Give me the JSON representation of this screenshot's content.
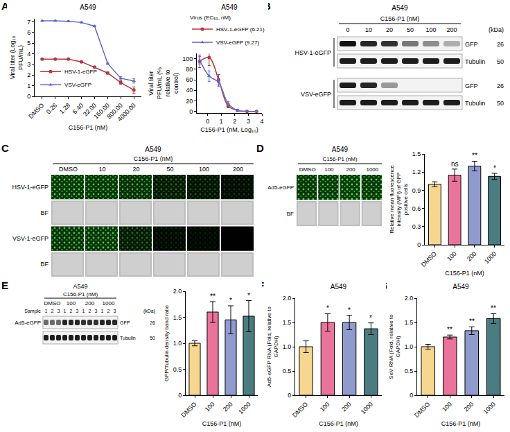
{
  "panel_letters": [
    "A",
    "B",
    "C",
    "D",
    "E",
    "F",
    "G"
  ],
  "chart_data": [
    {
      "type": "line",
      "title": "A549",
      "x_label": "C156-P1 (nM)",
      "y_label": "Viral titer (Log₁₀ PFU/mL)",
      "categories": [
        "DMSO",
        "0.26",
        "1.28",
        "6.40",
        "32.00",
        "160.00",
        "800.00",
        "4000.00"
      ],
      "series": [
        {
          "name": "HSV-1-eGFP",
          "color": "#b8343c",
          "marker": "circle",
          "values": [
            3.5,
            3.5,
            3.5,
            3.25,
            2.75,
            2.2,
            1.3,
            0.6
          ],
          "error": [
            0.05,
            0.05,
            0.05,
            0.05,
            0.05,
            0.1,
            0.15,
            0.3
          ]
        },
        {
          "name": "VSV-eGFP",
          "color": "#6066cc",
          "marker": "triangle-up",
          "values": [
            7.1,
            7.1,
            7.05,
            6.95,
            6.6,
            3.1,
            1.7,
            1.45
          ],
          "error": [
            0.05,
            0.05,
            0.05,
            0.05,
            0.05,
            0.1,
            0.15,
            0.2
          ]
        }
      ],
      "ylim": [
        0,
        7.3
      ],
      "yticks": [
        0,
        1,
        2,
        3,
        4,
        5,
        6,
        7
      ],
      "legend": "bottom left",
      "grid": false
    },
    {
      "type": "line",
      "title": "A549",
      "x_label": "C156-P1 (nM, Log₁₀)",
      "y_label": "Viral titer PFU/mL (% relative to control)",
      "legend_title": "Virus (EC₅₀, nM)",
      "x": [
        -0.59,
        0.11,
        0.81,
        1.51,
        2.2,
        2.9,
        3.6
      ],
      "series": [
        {
          "name": "HSV-1-eGFP (6.21)",
          "color": "#b8343c",
          "marker": "circle",
          "values": [
            95,
            102,
            60,
            10,
            2,
            0,
            0
          ],
          "error": [
            12,
            15,
            10,
            3,
            1,
            0,
            0
          ]
        },
        {
          "name": "VSV-eGFP (9.27)",
          "color": "#6066cc",
          "marker": "triangle-up",
          "values": [
            97,
            67,
            55,
            15,
            2,
            0,
            0
          ],
          "error": [
            7,
            10,
            8,
            4,
            1,
            0,
            0
          ]
        }
      ],
      "xlim": [
        -0.8,
        4
      ],
      "xticks": [
        0,
        1,
        2,
        3,
        4
      ],
      "ylim": [
        -3,
        110
      ],
      "yticks": [
        0,
        20,
        40,
        60,
        80,
        100
      ],
      "legend": "top",
      "grid": false
    },
    {
      "type": "bar",
      "x_label": "C156-P1 (nM)",
      "y_label": "Relative mean fluorescence intensity (MFI) of GFP positive cells",
      "categories": [
        "DMSO",
        "100",
        "200",
        "1000"
      ],
      "values": [
        1.0,
        1.15,
        1.3,
        1.13
      ],
      "error": [
        0.04,
        0.1,
        0.08,
        0.05
      ],
      "colors": [
        "#f7d68f",
        "#e9739b",
        "#8f9bcc",
        "#4b7c81"
      ],
      "ylim": [
        0,
        1.5
      ],
      "yticks": [
        0,
        0.3,
        0.6,
        0.9,
        1.2,
        1.5
      ],
      "annotations": [
        {
          "category": "100",
          "text": "ns"
        },
        {
          "category": "200",
          "text": "**"
        },
        {
          "category": "1000",
          "text": "*"
        }
      ],
      "grid": false
    },
    {
      "type": "bar",
      "x_label": "C156-P1 (nM)",
      "y_label": "GFP/Tubulin density band ratio",
      "categories": [
        "DMSO",
        "100",
        "200",
        "1000"
      ],
      "values": [
        1.0,
        1.6,
        1.45,
        1.52
      ],
      "error": [
        0.05,
        0.2,
        0.27,
        0.3
      ],
      "colors": [
        "#f7d68f",
        "#e9739b",
        "#8f9bcc",
        "#4b7c81"
      ],
      "ylim": [
        0,
        2
      ],
      "yticks": [
        0,
        0.5,
        {
          "value": 1,
          "label": "1.0"
        },
        1.5,
        {
          "value": 2,
          "label": "2.0"
        }
      ],
      "annotations": [
        {
          "category": "100",
          "text": "**"
        },
        {
          "category": "200",
          "text": "*"
        },
        {
          "category": "1000",
          "text": "*"
        }
      ],
      "grid": false
    },
    {
      "type": "bar",
      "title": "A549",
      "x_label": "C156-P1 (nM)",
      "y_label": "Ad5-eGFP RNA (Fold, relative to GAPDH)",
      "categories": [
        "DMSO",
        "100",
        "200",
        "1000"
      ],
      "values": [
        1.0,
        1.5,
        1.5,
        1.37
      ],
      "error": [
        0.12,
        0.18,
        0.15,
        0.12
      ],
      "colors": [
        "#f7d68f",
        "#e9739b",
        "#8f9bcc",
        "#4b7c81"
      ],
      "ylim": [
        0,
        2
      ],
      "yticks": [
        0,
        0.5,
        {
          "value": 1,
          "label": "1.0"
        },
        1.5,
        {
          "value": 2,
          "label": "2.0"
        }
      ],
      "annotations": [
        {
          "category": "100",
          "text": "*"
        },
        {
          "category": "200",
          "text": "*"
        },
        {
          "category": "1000",
          "text": "*"
        }
      ],
      "grid": false
    },
    {
      "type": "bar",
      "title": "A549",
      "x_label": "C156-P1 (nM)",
      "y_label": "SeV RNA (Fold, relative to GAPDH)",
      "categories": [
        "DMSO",
        "100",
        "200",
        "1000"
      ],
      "values": [
        1.0,
        1.2,
        1.33,
        1.58
      ],
      "error": [
        0.05,
        0.04,
        0.08,
        0.1
      ],
      "colors": [
        "#f7d68f",
        "#e9739b",
        "#8f9bcc",
        "#4b7c81"
      ],
      "ylim": [
        0,
        2
      ],
      "yticks": [
        0,
        0.5,
        {
          "value": 1,
          "label": "1.0"
        },
        1.5,
        {
          "value": 2,
          "label": "2.0"
        }
      ],
      "annotations": [
        {
          "category": "100",
          "text": "**"
        },
        {
          "category": "200",
          "text": "**"
        },
        {
          "category": "1000",
          "text": "**"
        }
      ],
      "grid": false
    }
  ],
  "blot_B": {
    "title": "A549",
    "treatment": "C156-P1 (nM)",
    "lanes": [
      "0",
      "10",
      "20",
      "50",
      "100",
      "200"
    ],
    "unit": "(kDa)",
    "groups": [
      {
        "name": "HSV-1-eGFP",
        "rows": [
          {
            "label": "GFP",
            "kda": 26,
            "intensity": [
              1,
              0.9,
              0.85,
              0.55,
              0.45,
              0.3
            ]
          },
          {
            "label": "Tubulin",
            "kda": 50,
            "intensity": [
              0.95,
              0.95,
              0.95,
              0.95,
              0.95,
              0.95
            ]
          }
        ]
      },
      {
        "name": "VSV-eGFP",
        "rows": [
          {
            "label": "GFP",
            "kda": 26,
            "intensity": [
              0.95,
              0.9,
              0.4,
              0,
              0,
              0
            ]
          },
          {
            "label": "Tubulin",
            "kda": 50,
            "intensity": [
              0.95,
              0.95,
              0.95,
              0.95,
              0.95,
              0.95
            ]
          }
        ]
      }
    ]
  },
  "micrographs_C": {
    "title": "A549",
    "treatment": "C156-P1 (nM)",
    "columns": [
      "DMSO",
      "10",
      "20",
      "50",
      "100",
      "200"
    ],
    "rows": [
      {
        "label": "HSV-1-eGFP",
        "signal": [
          0.9,
          0.85,
          0.75,
          0.4,
          0.3,
          0.2
        ]
      },
      {
        "label": "BF"
      },
      {
        "label": "VSV-1-eGFP",
        "signal": [
          0.8,
          0.85,
          0.4,
          0.15,
          0.1,
          0.02
        ]
      },
      {
        "label": "BF"
      }
    ]
  },
  "micrographs_D": {
    "title": "A549",
    "treatment": "C156-P1 (nM)",
    "columns": [
      "DMSO",
      "100",
      "200",
      "1000"
    ],
    "rows": [
      {
        "label": "Ad5-eGFP",
        "signal": [
          0.85,
          0.9,
          0.95,
          0.9
        ]
      },
      {
        "label": "BF"
      }
    ]
  },
  "blot_E": {
    "title": "A549",
    "treatment": "C156-P1 (nM)",
    "name": "Ad5-eGFP",
    "groups": [
      "DMSO",
      "100",
      "200",
      "1000"
    ],
    "sample_label": "Sample",
    "samples": [
      "1",
      "2",
      "3"
    ],
    "unit": "(kDa)",
    "rows": [
      {
        "label": "GFP",
        "kda": 26,
        "intensity": [
          0.6,
          0.6,
          0.6,
          0.9,
          0.9,
          0.9,
          0.85,
          0.85,
          0.85,
          0.9,
          0.9,
          0.9
        ]
      },
      {
        "label": "Tubulin",
        "kda": 50,
        "intensity": [
          0.95,
          0.95,
          0.95,
          0.95,
          0.95,
          0.95,
          0.95,
          0.95,
          0.95,
          0.95,
          0.95,
          0.95
        ]
      }
    ]
  }
}
